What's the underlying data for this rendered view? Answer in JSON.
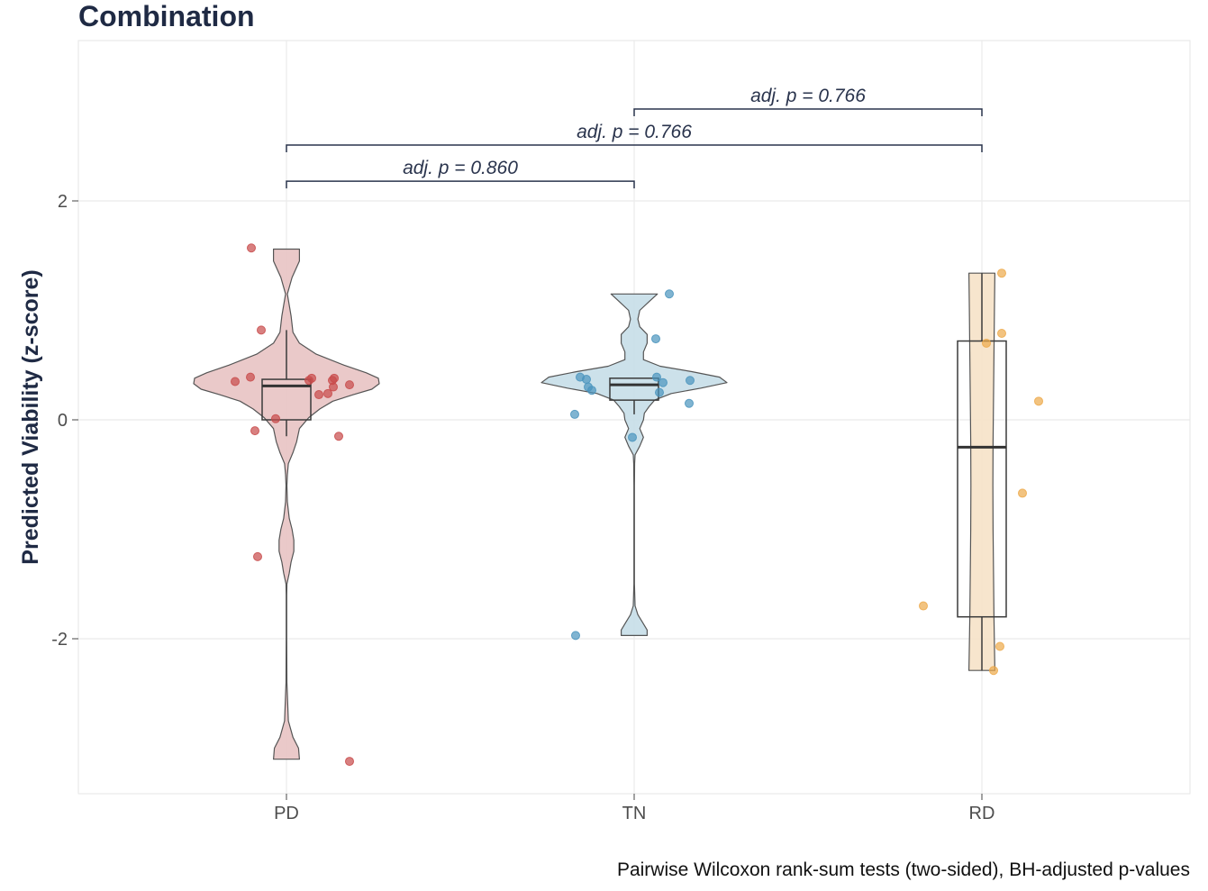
{
  "chart_data": {
    "type": "violin",
    "title": "Combination",
    "ylabel": "Predicted Viability (z-score)",
    "xlabel": "",
    "caption": "Pairwise Wilcoxon rank-sum tests (two-sided), BH-adjusted p-values",
    "categories": [
      "PD",
      "TN",
      "RD"
    ],
    "ylim": [
      -3.4,
      3.5
    ],
    "yticks": [
      2,
      0,
      -2
    ],
    "ytick_labels": [
      "2",
      "0",
      "-2"
    ],
    "grid": true,
    "colors": {
      "PD": {
        "fill": "#e8c3c3",
        "point": "#c84a4a"
      },
      "TN": {
        "fill": "#c6dee8",
        "point": "#4a94bd"
      },
      "RD": {
        "fill": "#f6e2c8",
        "point": "#eda94a"
      },
      "outline": "#555555",
      "bracket": "#2a344d",
      "grid": "#ebebeb",
      "title": "#1f2a44"
    },
    "groups": [
      {
        "name": "PD",
        "violin": {
          "y": [
            1.56,
            1.45,
            1.3,
            1.15,
            0.95,
            0.8,
            0.7,
            0.6,
            0.5,
            0.43,
            0.38,
            0.33,
            0.28,
            0.23,
            0.17,
            0.1,
            0.02,
            -0.08,
            -0.2,
            -0.3,
            -0.4,
            -0.5,
            -0.6,
            -0.75,
            -0.9,
            -1.0,
            -1.1,
            -1.2,
            -1.3,
            -1.4,
            -1.5,
            -1.6,
            -1.7,
            -2.0,
            -2.4,
            -2.75,
            -2.9,
            -3.0,
            -3.1
          ],
          "w": [
            0.14,
            0.14,
            0.06,
            0.01,
            0.05,
            0.07,
            0.14,
            0.32,
            0.62,
            0.86,
            0.99,
            1.0,
            0.92,
            0.72,
            0.5,
            0.36,
            0.24,
            0.14,
            0.11,
            0.07,
            0.02,
            0.01,
            0.005,
            0.01,
            0.03,
            0.06,
            0.08,
            0.08,
            0.05,
            0.03,
            0.005,
            0.003,
            0.003,
            0.003,
            0.005,
            0.02,
            0.07,
            0.13,
            0.14
          ]
        },
        "box": {
          "q1": 0.0,
          "median": 0.31,
          "q3": 0.37,
          "whisker_low": -0.15,
          "whisker_high": 0.82
        },
        "points": [
          {
            "x": -0.39,
            "y": 1.57
          },
          {
            "x": -0.28,
            "y": 0.82
          },
          {
            "x": -0.4,
            "y": 0.39
          },
          {
            "x": -0.57,
            "y": 0.35
          },
          {
            "x": -0.35,
            "y": -0.1
          },
          {
            "x": -0.12,
            "y": 0.01
          },
          {
            "x": 0.28,
            "y": 0.38
          },
          {
            "x": 0.25,
            "y": 0.36
          },
          {
            "x": 0.53,
            "y": 0.38
          },
          {
            "x": 0.51,
            "y": 0.36
          },
          {
            "x": 0.52,
            "y": 0.3
          },
          {
            "x": 0.7,
            "y": 0.32
          },
          {
            "x": 0.36,
            "y": 0.23
          },
          {
            "x": 0.46,
            "y": 0.24
          },
          {
            "x": 0.58,
            "y": -0.15
          },
          {
            "x": -0.32,
            "y": -1.25
          },
          {
            "x": 0.7,
            "y": -3.12
          }
        ]
      },
      {
        "name": "TN",
        "violin": {
          "y": [
            1.15,
            1.08,
            1.0,
            0.92,
            0.85,
            0.78,
            0.7,
            0.62,
            0.55,
            0.49,
            0.44,
            0.39,
            0.34,
            0.29,
            0.24,
            0.18,
            0.12,
            0.06,
            0.0,
            -0.08,
            -0.16,
            -0.24,
            -0.32,
            -0.4,
            -0.6,
            -0.9,
            -1.2,
            -1.5,
            -1.7,
            -1.78,
            -1.85,
            -1.92,
            -1.97
          ],
          "w": [
            0.25,
            0.16,
            0.06,
            0.04,
            0.06,
            0.14,
            0.14,
            0.1,
            0.1,
            0.28,
            0.62,
            0.92,
            1.0,
            0.72,
            0.4,
            0.22,
            0.16,
            0.11,
            0.1,
            0.06,
            0.1,
            0.06,
            0.01,
            0.005,
            0.003,
            0.003,
            0.003,
            0.003,
            0.01,
            0.04,
            0.09,
            0.14,
            0.14
          ]
        },
        "box": {
          "q1": 0.18,
          "median": 0.32,
          "q3": 0.38,
          "whisker_low": 0.05,
          "whisker_high": 0.38
        },
        "points": [
          {
            "x": 0.39,
            "y": 1.15
          },
          {
            "x": 0.24,
            "y": 0.74
          },
          {
            "x": -0.6,
            "y": 0.39
          },
          {
            "x": -0.53,
            "y": 0.37
          },
          {
            "x": -0.51,
            "y": 0.3
          },
          {
            "x": -0.47,
            "y": 0.27
          },
          {
            "x": 0.25,
            "y": 0.39
          },
          {
            "x": 0.32,
            "y": 0.34
          },
          {
            "x": 0.62,
            "y": 0.36
          },
          {
            "x": 0.28,
            "y": 0.25
          },
          {
            "x": 0.61,
            "y": 0.15
          },
          {
            "x": -0.66,
            "y": 0.05
          },
          {
            "x": -0.02,
            "y": -0.16
          },
          {
            "x": -0.65,
            "y": -1.97
          }
        ]
      },
      {
        "name": "RD",
        "violin": {
          "y": [
            1.34,
            1.0,
            0.6,
            0.2,
            -0.2,
            -0.6,
            -1.0,
            -1.4,
            -1.8,
            -2.05,
            -2.29
          ],
          "w": [
            0.14,
            0.135,
            0.13,
            0.125,
            0.12,
            0.118,
            0.12,
            0.125,
            0.13,
            0.135,
            0.14
          ]
        },
        "box": {
          "q1": -1.8,
          "median": -0.25,
          "q3": 0.72,
          "whisker_low": -2.29,
          "whisker_high": 1.34
        },
        "points": [
          {
            "x": 0.22,
            "y": 1.34
          },
          {
            "x": 0.22,
            "y": 0.79
          },
          {
            "x": 0.05,
            "y": 0.7
          },
          {
            "x": 0.63,
            "y": 0.17
          },
          {
            "x": 0.45,
            "y": -0.67
          },
          {
            "x": -0.65,
            "y": -1.7
          },
          {
            "x": 0.2,
            "y": -2.07
          },
          {
            "x": 0.13,
            "y": -2.29
          }
        ]
      }
    ],
    "annotations": [
      {
        "from": "PD",
        "to": "TN",
        "y": 2.18,
        "label": "adj. p = 0.860"
      },
      {
        "from": "PD",
        "to": "RD",
        "y": 2.51,
        "label": "adj. p = 0.766"
      },
      {
        "from": "TN",
        "to": "RD",
        "y": 2.84,
        "label": "adj. p = 0.766"
      }
    ]
  }
}
